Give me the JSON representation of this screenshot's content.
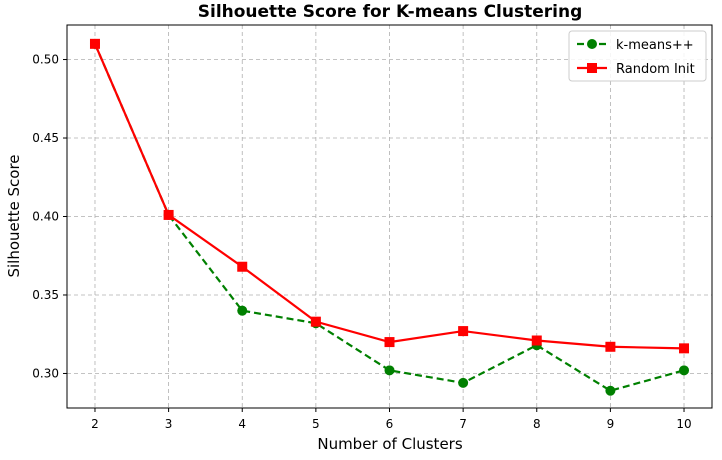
{
  "chart_data": {
    "type": "line",
    "title": "Silhouette Score for K-means Clustering",
    "xlabel": "Number of Clusters",
    "ylabel": "Silhouette Score",
    "x": [
      2,
      3,
      4,
      5,
      6,
      7,
      8,
      9,
      10
    ],
    "xlim": [
      1.62,
      10.38
    ],
    "ylim": [
      0.278,
      0.522
    ],
    "xticks": [
      "2",
      "3",
      "4",
      "5",
      "6",
      "7",
      "8",
      "9",
      "10"
    ],
    "yticks": [
      "0.30",
      "0.35",
      "0.40",
      "0.45",
      "0.50"
    ],
    "grid": true,
    "legend_position": "top-right",
    "series": [
      {
        "name": "k-means++",
        "values": [
          0.51,
          0.401,
          0.34,
          0.332,
          0.302,
          0.294,
          0.318,
          0.289,
          0.302
        ],
        "color": "#008000",
        "line_style": "dashed",
        "marker": "circle"
      },
      {
        "name": "Random Init",
        "values": [
          0.51,
          0.401,
          0.368,
          0.333,
          0.32,
          0.327,
          0.321,
          0.317,
          0.316
        ],
        "color": "#ff0000",
        "line_style": "solid",
        "marker": "square"
      }
    ]
  }
}
